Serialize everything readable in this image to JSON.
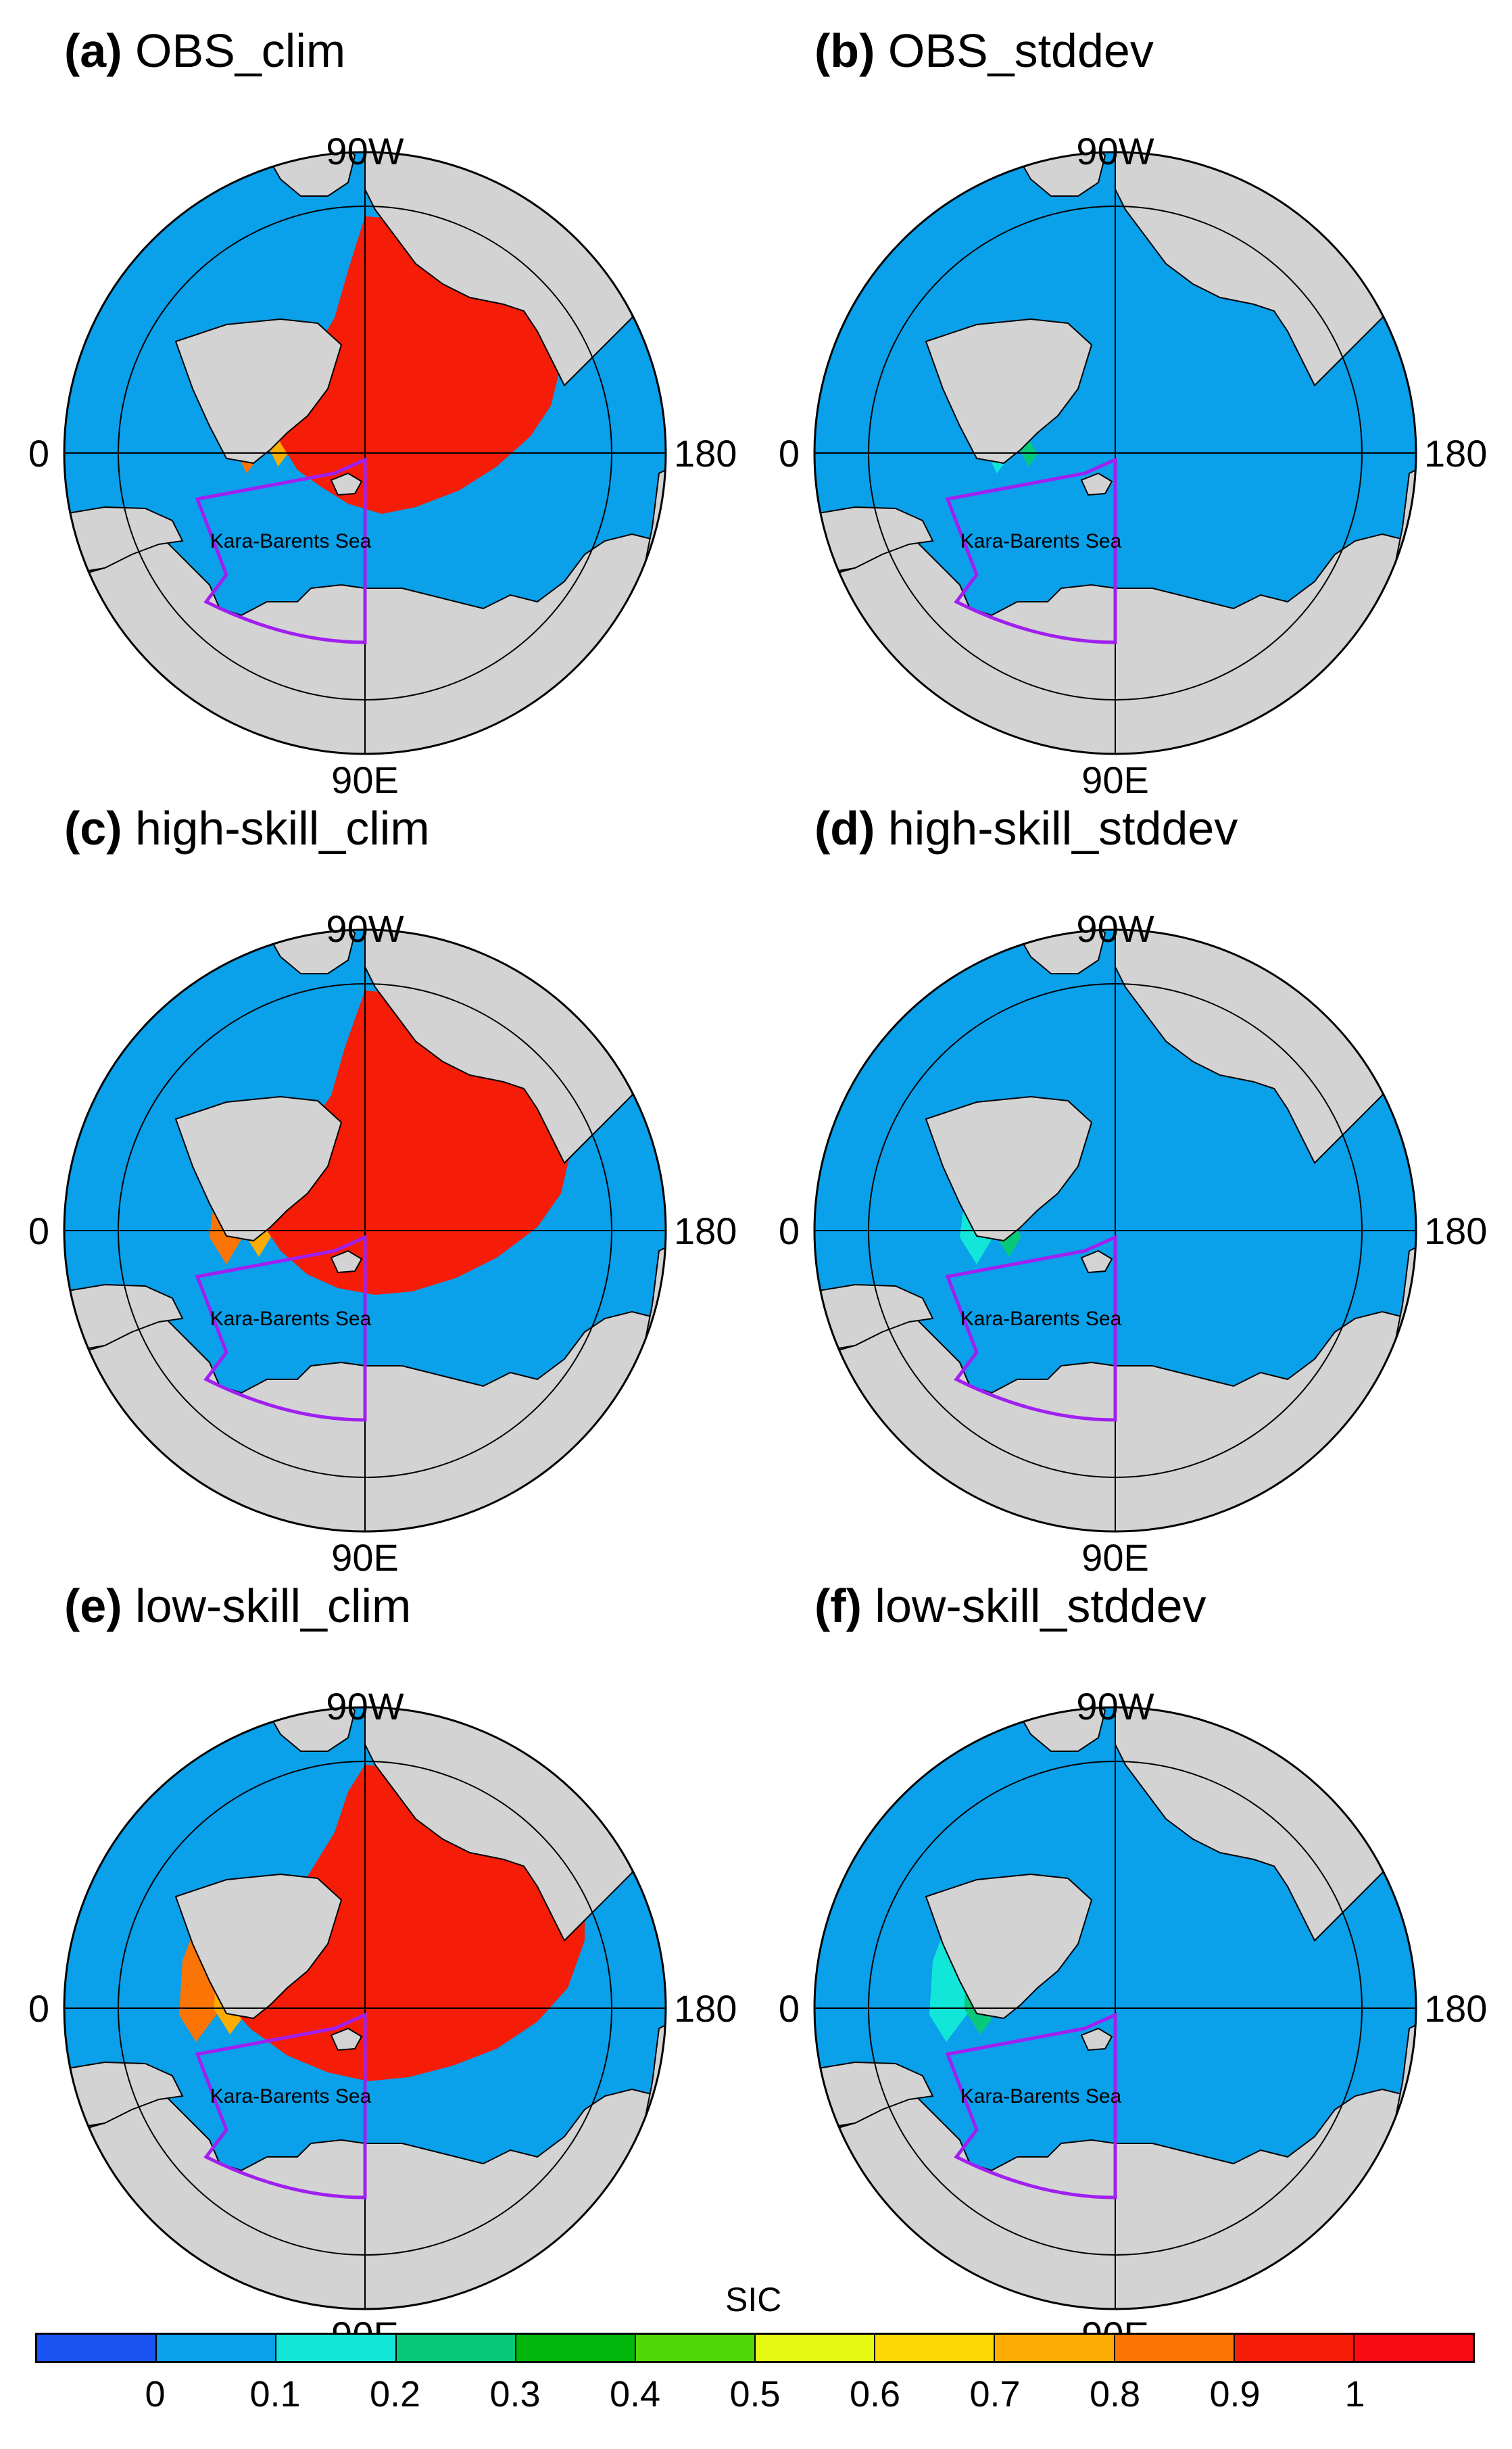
{
  "panels": [
    {
      "tag": "(a)",
      "title": "OBS_clim",
      "kind": "clim",
      "ice": "obs"
    },
    {
      "tag": "(b)",
      "title": "OBS_stddev",
      "kind": "std",
      "ice": "obs"
    },
    {
      "tag": "(c)",
      "title": "high-skill_clim",
      "kind": "clim",
      "ice": "high"
    },
    {
      "tag": "(d)",
      "title": "high-skill_stddev",
      "kind": "std",
      "ice": "high"
    },
    {
      "tag": "(e)",
      "title": "low-skill_clim",
      "kind": "clim",
      "ice": "low"
    },
    {
      "tag": "(f)",
      "title": "low-skill_stddev",
      "kind": "std",
      "ice": "low"
    }
  ],
  "map_labels": {
    "lon_top": "90W",
    "lon_left": "0",
    "lon_right": "180",
    "lon_bottom": "90E",
    "region": "Kara-Barents Sea"
  },
  "colors": {
    "land": "#d3d3d3",
    "ocean_low": "#0aa0ea",
    "region_outline": "#a020f0"
  },
  "colorbar": {
    "title": "SIC",
    "colors": [
      "#1a55f4",
      "#0aa0ea",
      "#12e6d9",
      "#08c97a",
      "#03b60b",
      "#50d707",
      "#e6f912",
      "#fdd905",
      "#fdac03",
      "#fb7406",
      "#f51c08",
      "#fa0a14"
    ],
    "ticks": [
      "0",
      "0.1",
      "0.2",
      "0.3",
      "0.4",
      "0.5",
      "0.6",
      "0.7",
      "0.8",
      "0.9",
      "1"
    ]
  }
}
